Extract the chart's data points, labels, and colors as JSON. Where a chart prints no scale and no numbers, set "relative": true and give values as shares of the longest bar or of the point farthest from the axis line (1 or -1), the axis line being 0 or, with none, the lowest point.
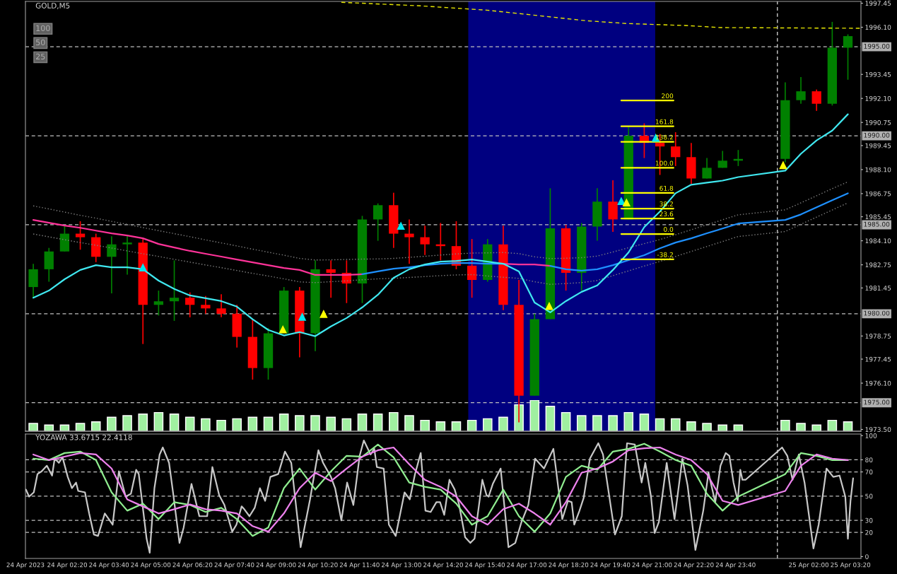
{
  "chart_data": [
    {
      "type": "candlestick",
      "title": "GOLD,M5",
      "annotations": [
        "100",
        "50",
        "25"
      ],
      "x": [
        "2023-04-24T01:15",
        "2023-04-24T01:45",
        "2023-04-24T02:15",
        "2023-04-24T02:45",
        "2023-04-24T03:15",
        "2023-04-24T03:45",
        "2023-04-24T04:15",
        "2023-04-24T04:45",
        "2023-04-24T05:15",
        "2023-04-24T05:45",
        "2023-04-24T06:15",
        "2023-04-24T06:45",
        "2023-04-24T07:15",
        "2023-04-24T07:45",
        "2023-04-24T08:15",
        "2023-04-24T08:45",
        "2023-04-24T09:15",
        "2023-04-24T09:45",
        "2023-04-24T10:15",
        "2023-04-24T10:45",
        "2023-04-24T11:15",
        "2023-04-24T11:45",
        "2023-04-24T12:15",
        "2023-04-24T12:45",
        "2023-04-24T13:15",
        "2023-04-24T13:45",
        "2023-04-24T14:15",
        "2023-04-24T14:45",
        "2023-04-24T15:15",
        "2023-04-24T15:45",
        "2023-04-24T16:15",
        "2023-04-24T16:45",
        "2023-04-24T17:15",
        "2023-04-24T17:45",
        "2023-04-24T18:15",
        "2023-04-24T18:45",
        "2023-04-24T19:15",
        "2023-04-24T19:45",
        "2023-04-24T20:15",
        "2023-04-24T20:45",
        "2023-04-24T21:15",
        "2023-04-24T21:45",
        "2023-04-24T22:15",
        "2023-04-24T22:45",
        "2023-04-24T23:15",
        "2023-04-24T23:45",
        "2023-04-25T01:15",
        "2023-04-25T01:45",
        "2023-04-25T02:15",
        "2023-04-25T02:45",
        "2023-04-25T03:15"
      ],
      "ohlc": [
        [
          1981.5,
          1982.8,
          1980.9,
          1982.5
        ],
        [
          1982.5,
          1983.7,
          1981.8,
          1983.5
        ],
        [
          1983.5,
          1984.95,
          1983.5,
          1984.5
        ],
        [
          1984.5,
          1985.2,
          1983.6,
          1984.3
        ],
        [
          1984.3,
          1984.5,
          1982.9,
          1983.2
        ],
        [
          1983.2,
          1984.35,
          1981.15,
          1983.9
        ],
        [
          1983.9,
          1984.4,
          1982.2,
          1984.0
        ],
        [
          1984.0,
          1984.2,
          1978.3,
          1980.5
        ],
        [
          1980.5,
          1981.3,
          1979.9,
          1980.7
        ],
        [
          1980.7,
          1983.0,
          1979.6,
          1980.9
        ],
        [
          1980.9,
          1981.2,
          1979.8,
          1980.5
        ],
        [
          1980.5,
          1981.0,
          1980.0,
          1980.3
        ],
        [
          1980.3,
          1981.1,
          1979.8,
          1980.0
        ],
        [
          1980.0,
          1980.5,
          1978.1,
          1978.7
        ],
        [
          1978.7,
          1979.7,
          1976.3,
          1976.95
        ],
        [
          1976.95,
          1979.2,
          1976.3,
          1978.9
        ],
        [
          1978.9,
          1981.5,
          1978.9,
          1981.3
        ],
        [
          1981.3,
          1981.5,
          1977.55,
          1978.9
        ],
        [
          1978.9,
          1983.0,
          1977.9,
          1982.5
        ],
        [
          1982.5,
          1983.0,
          1980.9,
          1982.3
        ],
        [
          1982.3,
          1983.0,
          1980.6,
          1981.7
        ],
        [
          1981.7,
          1985.5,
          1980.6,
          1985.3
        ],
        [
          1985.3,
          1986.2,
          1984.1,
          1986.1
        ],
        [
          1986.1,
          1986.8,
          1983.7,
          1984.5
        ],
        [
          1984.5,
          1985.3,
          1982.8,
          1984.3
        ],
        [
          1984.3,
          1984.95,
          1983.3,
          1983.9
        ],
        [
          1983.9,
          1985.1,
          1983.0,
          1983.8
        ],
        [
          1983.8,
          1985.2,
          1982.5,
          1982.7
        ],
        [
          1982.7,
          1984.2,
          1980.9,
          1981.9
        ],
        [
          1981.9,
          1984.2,
          1981.8,
          1983.9
        ],
        [
          1983.9,
          1984.95,
          1980.2,
          1980.5
        ],
        [
          1980.5,
          1981.9,
          1973.9,
          1975.4
        ],
        [
          1975.4,
          1980.0,
          1975.4,
          1979.7
        ],
        [
          1979.7,
          1987.05,
          1979.7,
          1984.8
        ],
        [
          1984.8,
          1985.0,
          1981.3,
          1982.3
        ],
        [
          1982.3,
          1985.1,
          1981.3,
          1984.9
        ],
        [
          1984.9,
          1987.05,
          1984.1,
          1986.3
        ],
        [
          1986.3,
          1987.5,
          1984.6,
          1985.3
        ],
        [
          1985.3,
          1990.5,
          1985.3,
          1990.0
        ],
        [
          1990.0,
          1990.7,
          1988.75,
          1989.6
        ],
        [
          1989.6,
          1990.1,
          1987.8,
          1989.4
        ],
        [
          1989.4,
          1990.2,
          1988.3,
          1988.8
        ],
        [
          1988.8,
          1989.6,
          1987.3,
          1987.6
        ],
        [
          1987.6,
          1988.75,
          1987.6,
          1988.2
        ],
        [
          1988.2,
          1989.15,
          1988.2,
          1988.6
        ],
        [
          1988.6,
          1989.2,
          1988.3,
          1988.7
        ],
        [
          1988.7,
          1993.0,
          1988.5,
          1992.0
        ],
        [
          1992.0,
          1993.3,
          1991.8,
          1992.5
        ],
        [
          1992.5,
          1992.6,
          1991.4,
          1991.8
        ],
        [
          1991.8,
          1996.4,
          1991.7,
          1994.95
        ],
        [
          1994.95,
          1995.7,
          1993.15,
          1995.6
        ]
      ],
      "colors": [
        "#008000",
        "#008000",
        "#008000",
        "#ff0000",
        "#ff0000",
        "#008000",
        "#008000",
        "#ff0000",
        "#008000",
        "#008000",
        "#ff0000",
        "#ff0000",
        "#ff0000",
        "#ff0000",
        "#ff0000",
        "#008000",
        "#008000",
        "#ff0000",
        "#008000",
        "#ff0000",
        "#ff0000",
        "#008000",
        "#008000",
        "#ff0000",
        "#ff0000",
        "#ff0000",
        "#ff0000",
        "#ff0000",
        "#ff0000",
        "#008000",
        "#ff0000",
        "#ff0000",
        "#008000",
        "#008000",
        "#ff0000",
        "#008000",
        "#008000",
        "#ff0000",
        "#008000",
        "#ff0000",
        "#ff0000",
        "#ff0000",
        "#ff0000",
        "#008000",
        "#008000",
        "#008000",
        "#008000",
        "#008000",
        "#ff0000",
        "#008000",
        "#008000"
      ],
      "series": [
        {
          "type": "line",
          "color": "#808080",
          "line_style": "dotted",
          "values": [
            1986.06,
            1985.89,
            1985.71,
            1985.53,
            1985.37,
            1985.19,
            1985.02,
            1984.84,
            1984.67,
            1984.5,
            1984.33,
            1984.15,
            1983.98,
            1983.81,
            1983.63,
            1983.46,
            1983.29,
            1983.11,
            1983.02,
            1983.03,
            1983.05,
            1983.07,
            1983.08,
            1983.11,
            1983.17,
            1983.23,
            1983.3,
            1983.36,
            1983.41,
            1983.42,
            1983.44,
            1983.38,
            1983.2,
            1983.1,
            1983.12,
            1983.15,
            1983.24,
            1983.47,
            1983.71,
            1983.94,
            1984.17,
            1984.44,
            1984.72,
            1985.0,
            1985.28,
            1985.56,
            1985.84,
            1986.23,
            1986.63,
            1987.03,
            1987.41
          ]
        },
        {
          "type": "line",
          "color": "#808080",
          "line_style": "dotted",
          "values": [
            1984.48,
            1984.32,
            1984.16,
            1984.0,
            1983.85,
            1983.69,
            1983.53,
            1983.37,
            1983.22,
            1983.06,
            1982.9,
            1982.74,
            1982.59,
            1982.43,
            1982.27,
            1982.12,
            1981.96,
            1981.79,
            1981.75,
            1981.8,
            1981.85,
            1981.91,
            1981.96,
            1981.99,
            1982.04,
            1982.09,
            1982.14,
            1982.18,
            1982.2,
            1982.12,
            1982.05,
            1981.99,
            1981.8,
            1981.65,
            1981.7,
            1981.75,
            1981.87,
            1982.14,
            1982.41,
            1982.68,
            1982.94,
            1983.22,
            1983.5,
            1983.78,
            1984.06,
            1984.34,
            1984.62,
            1985.03,
            1985.43,
            1985.83,
            1986.23
          ]
        },
        {
          "type": "line",
          "color": "#ff3399",
          "values": [
            1985.27,
            1985.11,
            1984.95,
            1984.83,
            1984.67,
            1984.52,
            1984.4,
            1984.24,
            1983.92,
            1983.72,
            1983.53,
            1983.37,
            1983.21,
            1983.05,
            1982.89,
            1982.73,
            1982.57,
            1982.46,
            1982.18,
            1982.18,
            1982.18,
            1982.22,
            null,
            null,
            null,
            null,
            null,
            null,
            null,
            null,
            1982.81,
            1982.77,
            1982.77,
            1982.69,
            null,
            null,
            null,
            null,
            null,
            null,
            null,
            null,
            null,
            null,
            null,
            null,
            null,
            null,
            null,
            null,
            null
          ]
        },
        {
          "type": "line",
          "color": "#1e90ff",
          "values": [
            null,
            null,
            null,
            null,
            null,
            null,
            null,
            null,
            null,
            null,
            null,
            null,
            null,
            null,
            null,
            null,
            null,
            null,
            null,
            null,
            null,
            1982.22,
            1982.38,
            1982.53,
            1982.61,
            1982.73,
            1982.81,
            1982.85,
            1982.85,
            1982.81,
            1982.81,
            null,
            null,
            1982.69,
            1982.5,
            1982.42,
            1982.5,
            1982.73,
            1983.01,
            1983.29,
            1983.68,
            1984.0,
            1984.24,
            1984.52,
            1984.79,
            1985.07,
            1985.27,
            1985.58,
            1985.98,
            1986.38,
            1986.77
          ]
        },
        {
          "type": "line",
          "color": "#40e8f0",
          "values": [
            1980.9,
            1981.3,
            1981.94,
            1982.46,
            1982.73,
            1982.61,
            1982.61,
            1982.5,
            1981.86,
            1981.39,
            1981.03,
            1980.87,
            1980.71,
            1980.4,
            1979.69,
            1979.09,
            1978.78,
            1978.97,
            1978.74,
            1979.29,
            1979.76,
            1980.36,
            1981.07,
            1982.02,
            1982.5,
            1982.77,
            1982.93,
            1982.97,
            1983.05,
            1982.93,
            1982.81,
            1982.38,
            1980.63,
            1980.08,
            1980.71,
            1981.23,
            1981.59,
            1982.46,
            1983.45,
            1984.87,
            1985.74,
            1986.77,
            1987.25,
            1987.37,
            1987.48,
            1987.68,
            1988.04,
            1988.99,
            1989.74,
            1990.29,
            1991.21
          ]
        },
        {
          "type": "line",
          "color": "#e6e600",
          "line_style": "dashed",
          "x": [
            "2023-04-24T11:05",
            "2023-04-24T13:37",
            "2023-04-24T15:43",
            "2023-04-24T17:23",
            "2023-04-24T18:52",
            "2023-04-24T20:10",
            "2023-04-24T22:08",
            "2023-04-24T23:11",
            "2023-04-25T03:40"
          ],
          "values": [
            1997.5,
            1997.3,
            1997.06,
            1996.75,
            1996.47,
            1996.31,
            1996.19,
            1996.08,
            1996.04
          ]
        },
        {
          "type": "scatter",
          "color": "#00e5ee",
          "marker": "triangle",
          "x": [
            "2023-04-24T04:45",
            "2023-04-24T09:50",
            "2023-04-24T12:59",
            "2023-04-24T20:01",
            "2023-04-24T21:07"
          ],
          "values": [
            1982.61,
            1979.84,
            1984.95,
            1986.34,
            1989.9
          ]
        },
        {
          "type": "scatter",
          "color": "#ffff00",
          "marker": "triangle",
          "x": [
            "2023-04-24T09:13",
            "2023-04-24T10:31",
            "2023-04-24T17:43",
            "2023-04-24T20:11",
            "2023-04-25T01:11"
          ],
          "values": [
            1979.13,
            1980.0,
            1980.44,
            1986.26,
            1988.36
          ]
        },
        {
          "type": "line",
          "name": "200",
          "color": "#ffff00",
          "x": [
            "2023-04-24T20:01",
            "2023-04-24T21:41"
          ],
          "values": [
            1991.98,
            1991.98
          ]
        },
        {
          "type": "line",
          "name": "161.8",
          "color": "#ffff00",
          "x": [
            "2023-04-24T20:01",
            "2023-04-24T21:41"
          ],
          "values": [
            1990.53,
            1990.53
          ]
        },
        {
          "type": "line",
          "name": "138.2",
          "color": "#ffff00",
          "x": [
            "2023-04-24T20:01",
            "2023-04-24T21:41"
          ],
          "values": [
            1989.66,
            1989.66
          ]
        },
        {
          "type": "line",
          "name": "100.0",
          "color": "#ffff00",
          "x": [
            "2023-04-24T20:01",
            "2023-04-24T21:41"
          ],
          "values": [
            1988.2,
            1988.2
          ]
        },
        {
          "type": "line",
          "name": "61.8",
          "color": "#ffff00",
          "x": [
            "2023-04-24T20:01",
            "2023-04-24T21:41"
          ],
          "values": [
            1986.79,
            1986.79
          ]
        },
        {
          "type": "line",
          "name": "38.2",
          "color": "#ffff00",
          "x": [
            "2023-04-24T20:01",
            "2023-04-24T21:41"
          ],
          "values": [
            1985.91,
            1985.91
          ]
        },
        {
          "type": "line",
          "name": "23.6",
          "color": "#ffff00",
          "x": [
            "2023-04-24T20:01",
            "2023-04-24T21:41"
          ],
          "values": [
            1985.35,
            1985.35
          ]
        },
        {
          "type": "line",
          "name": "0.0",
          "color": "#ffff00",
          "x": [
            "2023-04-24T20:01",
            "2023-04-24T21:41"
          ],
          "values": [
            1984.48,
            1984.48
          ]
        },
        {
          "type": "line",
          "name": "-38.2",
          "color": "#ffff00",
          "x": [
            "2023-04-24T20:01",
            "2023-04-24T21:41"
          ],
          "values": [
            1983.06,
            1983.06
          ]
        }
      ],
      "xlim": [
        "2023-04-24T01:00",
        "2023-04-25T03:40"
      ],
      "ylim": [
        1973.4,
        1997.55
      ],
      "yticks": [
        {
          "value": 1973.5,
          "label": "1973.50"
        },
        {
          "value": 1976.1,
          "label": "1976.10"
        },
        {
          "value": 1977.45,
          "label": "1977.45"
        },
        {
          "value": 1978.75,
          "label": "1978.75"
        },
        {
          "value": 1981.45,
          "label": "1981.45"
        },
        {
          "value": 1982.75,
          "label": "1982.75"
        },
        {
          "value": 1984.1,
          "label": "1984.10"
        },
        {
          "value": 1985.45,
          "label": "1985.45"
        },
        {
          "value": 1986.75,
          "label": "1986.75"
        },
        {
          "value": 1988.1,
          "label": "1988.10"
        },
        {
          "value": 1989.45,
          "label": "1989.45"
        },
        {
          "value": 1990.75,
          "label": "1990.75"
        },
        {
          "value": 1992.1,
          "label": "1992.10"
        },
        {
          "value": 1993.45,
          "label": "1993.45"
        },
        {
          "value": 1996.1,
          "label": "1996.10"
        },
        {
          "value": 1997.45,
          "label": "1997.45"
        }
      ],
      "tick_labels": "y",
      "ref_lines": [
        {
          "axis": "y",
          "value": 1995,
          "label": "1995.00",
          "color": "#c0c0c0",
          "line_style": "dashed"
        },
        {
          "axis": "y",
          "value": 1990,
          "label": "1990.00",
          "color": "#c0c0c0",
          "line_style": "dashed"
        },
        {
          "axis": "y",
          "value": 1985,
          "label": "1985.00",
          "color": "#c0c0c0",
          "line_style": "dashed"
        },
        {
          "axis": "y",
          "value": 1980,
          "label": "1980.00",
          "color": "#c0c0c0",
          "line_style": "dashed"
        },
        {
          "axis": "y",
          "value": 1975,
          "label": "1975.00",
          "color": "#c0c0c0",
          "line_style": "dashed"
        },
        {
          "axis": "x",
          "value": "2023-04-25T01:00",
          "color": "#e0e0e0",
          "line_style": "dashed"
        }
      ],
      "bands": [
        {
          "axis": "x",
          "from": "2023-04-24T15:08",
          "to": "2023-04-24T21:06",
          "color": "#000080"
        }
      ]
    },
    {
      "type": "bar",
      "relative": true,
      "color": "#a0f0a0",
      "x": [
        "2023-04-24T01:15",
        "2023-04-24T01:45",
        "2023-04-24T02:15",
        "2023-04-24T02:45",
        "2023-04-24T03:15",
        "2023-04-24T03:45",
        "2023-04-24T04:15",
        "2023-04-24T04:45",
        "2023-04-24T05:15",
        "2023-04-24T05:45",
        "2023-04-24T06:15",
        "2023-04-24T06:45",
        "2023-04-24T07:15",
        "2023-04-24T07:45",
        "2023-04-24T08:15",
        "2023-04-24T08:45",
        "2023-04-24T09:15",
        "2023-04-24T09:45",
        "2023-04-24T10:15",
        "2023-04-24T10:45",
        "2023-04-24T11:15",
        "2023-04-24T11:45",
        "2023-04-24T12:15",
        "2023-04-24T12:45",
        "2023-04-24T13:15",
        "2023-04-24T13:45",
        "2023-04-24T14:15",
        "2023-04-24T14:45",
        "2023-04-24T15:15",
        "2023-04-24T15:45",
        "2023-04-24T16:15",
        "2023-04-24T16:45",
        "2023-04-24T17:15",
        "2023-04-24T17:45",
        "2023-04-24T18:15",
        "2023-04-24T18:45",
        "2023-04-24T19:15",
        "2023-04-24T19:45",
        "2023-04-24T20:15",
        "2023-04-24T20:45",
        "2023-04-24T21:15",
        "2023-04-24T21:45",
        "2023-04-24T22:15",
        "2023-04-24T22:45",
        "2023-04-24T23:15",
        "2023-04-24T23:45",
        "2023-04-25T01:15",
        "2023-04-25T01:45",
        "2023-04-25T02:15",
        "2023-04-25T02:45",
        "2023-04-25T03:15"
      ],
      "values": [
        0.25,
        0.2,
        0.2,
        0.25,
        0.3,
        0.45,
        0.5,
        0.55,
        0.6,
        0.55,
        0.45,
        0.4,
        0.35,
        0.4,
        0.45,
        0.45,
        0.55,
        0.5,
        0.5,
        0.45,
        0.4,
        0.55,
        0.55,
        0.6,
        0.5,
        0.35,
        0.3,
        0.3,
        0.35,
        0.4,
        0.45,
        0.85,
        1,
        0.8,
        0.6,
        0.5,
        0.5,
        0.5,
        0.6,
        0.55,
        0.4,
        0.4,
        0.3,
        0.25,
        0.2,
        0.2,
        0.35,
        0.25,
        0.2,
        0.35,
        0.3
      ],
      "xlim": [
        "2023-04-24T01:00",
        "2023-04-25T03:40"
      ],
      "tick_labels": false
    },
    {
      "type": "line",
      "title": "YOZAWA 33.6715 22.4118",
      "x": [
        "2023-04-24T01:15",
        "2023-04-24T01:45",
        "2023-04-24T02:15",
        "2023-04-24T02:45",
        "2023-04-24T03:15",
        "2023-04-24T03:45",
        "2023-04-24T04:15",
        "2023-04-24T04:45",
        "2023-04-24T05:15",
        "2023-04-24T05:45",
        "2023-04-24T06:15",
        "2023-04-24T06:45",
        "2023-04-24T07:15",
        "2023-04-24T07:45",
        "2023-04-24T08:15",
        "2023-04-24T08:45",
        "2023-04-24T09:15",
        "2023-04-24T09:45",
        "2023-04-24T10:15",
        "2023-04-24T10:45",
        "2023-04-24T11:15",
        "2023-04-24T11:45",
        "2023-04-24T12:15",
        "2023-04-24T12:45",
        "2023-04-24T13:15",
        "2023-04-24T13:45",
        "2023-04-24T14:15",
        "2023-04-24T14:45",
        "2023-04-24T15:15",
        "2023-04-24T15:45",
        "2023-04-24T16:15",
        "2023-04-24T16:45",
        "2023-04-24T17:15",
        "2023-04-24T17:45",
        "2023-04-24T18:15",
        "2023-04-24T18:45",
        "2023-04-24T19:15",
        "2023-04-24T19:45",
        "2023-04-24T20:15",
        "2023-04-24T20:45",
        "2023-04-24T21:15",
        "2023-04-24T21:45",
        "2023-04-24T22:15",
        "2023-04-24T22:45",
        "2023-04-24T23:15",
        "2023-04-24T23:45",
        "2023-04-25T01:15",
        "2023-04-25T01:45",
        "2023-04-25T02:15",
        "2023-04-25T02:45",
        "2023-04-25T03:15"
      ],
      "series": [
        {
          "type": "line",
          "color": "#c8c8c8",
          "x": [
            "2023-04-24T01:01",
            "2023-04-24T01:07",
            "2023-04-24T01:16",
            "2023-04-24T01:23",
            "2023-04-24T01:31",
            "2023-04-24T01:41",
            "2023-04-24T01:51",
            "2023-04-24T01:56",
            "2023-04-24T02:04",
            "2023-04-24T02:11",
            "2023-04-24T02:21",
            "2023-04-24T02:29",
            "2023-04-24T02:37",
            "2023-04-24T02:41",
            "2023-04-24T02:54",
            "2023-04-24T03:02",
            "2023-04-24T03:11",
            "2023-04-24T03:19",
            "2023-04-24T03:32",
            "2023-04-24T03:47",
            "2023-04-24T03:59",
            "2023-04-24T04:12",
            "2023-04-24T04:22",
            "2023-04-24T04:32",
            "2023-04-24T04:37",
            "2023-04-24T04:52",
            "2023-04-24T04:58",
            "2023-04-24T05:07",
            "2023-04-24T05:17",
            "2023-04-24T05:23",
            "2023-04-24T05:35",
            "2023-04-24T05:43",
            "2023-04-24T05:55",
            "2023-04-24T06:03",
            "2023-04-24T06:18",
            "2023-04-24T06:33",
            "2023-04-24T06:48",
            "2023-04-24T06:58",
            "2023-04-24T07:11",
            "2023-04-24T07:21",
            "2023-04-24T07:36",
            "2023-04-24T07:44",
            "2023-04-24T07:54",
            "2023-04-24T07:59",
            "2023-04-24T08:09",
            "2023-04-24T08:19",
            "2023-04-24T08:29",
            "2023-04-24T08:39",
            "2023-04-24T08:49",
            "2023-04-24T09:04",
            "2023-04-24T09:17",
            "2023-04-24T09:29",
            "2023-04-24T09:47",
            "2023-04-24T10:05",
            "2023-04-24T10:21",
            "2023-04-24T10:30",
            "2023-04-24T10:45",
            "2023-04-24T10:53",
            "2023-04-24T11:05",
            "2023-04-24T11:16",
            "2023-04-24T11:28",
            "2023-04-24T11:40",
            "2023-04-24T11:48",
            "2023-04-24T12:01",
            "2023-04-24T12:08",
            "2023-04-24T12:13",
            "2023-04-24T12:26",
            "2023-04-24T12:36",
            "2023-04-24T12:49",
            "2023-04-24T13:06",
            "2023-04-24T13:16",
            "2023-04-24T13:26",
            "2023-04-24T13:37",
            "2023-04-24T13:46",
            "2023-04-24T13:56",
            "2023-04-24T14:07",
            "2023-04-24T14:14",
            "2023-04-24T14:22",
            "2023-04-24T14:32",
            "2023-04-24T14:42",
            "2023-04-24T14:50",
            "2023-04-24T15:02",
            "2023-04-24T15:12",
            "2023-04-24T15:20",
            "2023-04-24T15:35",
            "2023-04-24T15:43",
            "2023-04-24T15:47",
            "2023-04-24T15:55",
            "2023-04-24T16:10",
            "2023-04-24T16:25",
            "2023-04-24T16:38",
            "2023-04-24T16:50",
            "2023-04-24T17:03",
            "2023-04-24T17:16",
            "2023-04-24T17:33",
            "2023-04-24T17:51",
            "2023-04-24T18:08",
            "2023-04-24T18:19",
            "2023-04-24T18:26",
            "2023-04-24T18:31",
            "2023-04-24T18:41",
            "2023-04-24T18:49",
            "2023-04-24T19:01",
            "2023-04-24T19:17",
            "2023-04-24T19:26",
            "2023-04-24T19:49",
            "2023-04-24T20:02",
            "2023-04-24T20:12",
            "2023-04-24T20:27",
            "2023-04-24T20:40",
            "2023-04-24T20:47",
            "2023-04-24T20:58",
            "2023-04-24T21:05",
            "2023-04-24T21:13",
            "2023-04-24T21:28",
            "2023-04-24T21:43",
            "2023-04-24T21:58",
            "2023-04-24T22:08",
            "2023-04-24T22:23",
            "2023-04-24T22:38",
            "2023-04-24T22:48",
            "2023-04-24T23:01",
            "2023-04-24T23:11",
            "2023-04-24T23:21",
            "2023-04-24T23:28",
            "2023-04-24T23:36",
            "2023-04-24T23:44",
            "2023-04-24T23:49",
            "2023-04-24T23:53",
            "2023-04-24T23:59",
            "2023-04-25T01:09",
            "2023-04-25T01:19",
            "2023-04-25T01:29",
            "2023-04-25T01:41",
            "2023-04-25T01:52",
            "2023-04-25T02:09",
            "2023-04-25T02:19",
            "2023-04-25T02:34",
            "2023-04-25T02:47",
            "2023-04-25T02:59",
            "2023-04-25T03:10",
            "2023-04-25T03:15",
            "2023-04-25T03:20",
            "2023-04-25T03:25"
          ],
          "values": [
            55.4,
            49.6,
            53.1,
            68.2,
            70.5,
            75.1,
            67.0,
            81.0,
            77.5,
            82.1,
            65.9,
            56.6,
            61.2,
            54.3,
            53.1,
            35.7,
            18.3,
            17.1,
            35.7,
            26.4,
            70.5,
            49.6,
            51.9,
            71.7,
            68.2,
            14.8,
            3.2,
            56.6,
            84.4,
            90.2,
            77.5,
            51.9,
            11.3,
            24.1,
            60.1,
            33.4,
            33.4,
            74.0,
            50.8,
            42.7,
            20.6,
            26.4,
            41.5,
            39.2,
            33.4,
            40.3,
            56.6,
            46.1,
            65.9,
            68.2,
            86.8,
            77.5,
            7.8,
            47.3,
            87.9,
            77.5,
            65.9,
            56.6,
            29.9,
            61.2,
            42.7,
            83.3,
            96.0,
            84.4,
            89.1,
            74.0,
            72.8,
            26.4,
            17.1,
            53.1,
            47.3,
            68.2,
            85.6,
            38.0,
            36.9,
            45.0,
            45.0,
            34.5,
            63.5,
            55.4,
            43.8,
            16.0,
            11.3,
            14.8,
            63.5,
            50.8,
            49.6,
            60.1,
            72.8,
            7.8,
            11.3,
            28.7,
            42.7,
            81.0,
            72.8,
            89.1,
            31.0,
            46.1,
            45.0,
            26.4,
            38.0,
            48.5,
            81.0,
            93.7,
            84.4,
            18.3,
            33.4,
            93.7,
            92.6,
            61.2,
            77.5,
            49.6,
            19.4,
            28.7,
            77.5,
            31.0,
            81.0,
            58.9,
            5.5,
            38.0,
            69.3,
            45.0,
            75.1,
            85.6,
            83.3,
            61.2,
            46.1,
            71.7,
            63.5,
            63.5,
            90.2,
            83.3,
            63.5,
            84.4,
            61.2,
            6.7,
            26.4,
            72.8,
            65.9,
            67.0,
            49.6,
            14.8,
            46.1,
            64.7
          ]
        },
        {
          "type": "line",
          "color": "#90ee90",
          "values": [
            81.0,
            79.8,
            85.6,
            86.8,
            79.8,
            53.1,
            38.0,
            43.8,
            31.0,
            45.0,
            42.7,
            36.9,
            40.3,
            31.0,
            17.1,
            24.1,
            56.6,
            72.8,
            55.4,
            70.5,
            83.3,
            82.6,
            92.6,
            82.1,
            61.2,
            57.7,
            55.4,
            43.8,
            26.4,
            33.4,
            55.4,
            33.4,
            20.6,
            35.7,
            65.9,
            75.1,
            71.7,
            86.8,
            89.1,
            93.3,
            86.8,
            79.8,
            75.1,
            51.9,
            38.0,
            49.6,
            68.2,
            85.6,
            83.3,
            79.8,
            79.8
          ]
        },
        {
          "type": "line",
          "color": "#ee82ee",
          "values": [
            84.4,
            79.8,
            82.6,
            85.6,
            84.4,
            72.8,
            47.3,
            41.5,
            35.7,
            39.2,
            43.1,
            39.2,
            38.0,
            35.7,
            25.2,
            20.6,
            35.7,
            56.6,
            69.3,
            62.4,
            72.8,
            82.6,
            87.9,
            90.2,
            76.3,
            63.5,
            57.7,
            49.6,
            33.4,
            26.4,
            39.2,
            43.8,
            35.7,
            26.4,
            45.0,
            69.3,
            72.8,
            78.6,
            87.9,
            89.5,
            90.2,
            84.4,
            79.8,
            68.2,
            46.1,
            42.7,
            54.3,
            75.1,
            84.4,
            81.0,
            79.8
          ]
        }
      ],
      "xlim": [
        "2023-04-24T01:00",
        "2023-04-25T03:40"
      ],
      "ylim": [
        -1.5,
        101.3
      ],
      "xticks": [
        {
          "value": "2023-04-24T01:00",
          "label": "24 Apr 2023"
        },
        {
          "value": "2023-04-24T02:20",
          "label": "24 Apr 02:20"
        },
        {
          "value": "2023-04-24T03:40",
          "label": "24 Apr 03:40"
        },
        {
          "value": "2023-04-24T05:00",
          "label": "24 Apr 05:00"
        },
        {
          "value": "2023-04-24T06:20",
          "label": "24 Apr 06:20"
        },
        {
          "value": "2023-04-24T07:40",
          "label": "24 Apr 07:40"
        },
        {
          "value": "2023-04-24T09:00",
          "label": "24 Apr 09:00"
        },
        {
          "value": "2023-04-24T10:20",
          "label": "24 Apr 10:20"
        },
        {
          "value": "2023-04-24T11:40",
          "label": "24 Apr 11:40"
        },
        {
          "value": "2023-04-24T13:00",
          "label": "24 Apr 13:00"
        },
        {
          "value": "2023-04-24T14:20",
          "label": "24 Apr 14:20"
        },
        {
          "value": "2023-04-24T15:40",
          "label": "24 Apr 15:40"
        },
        {
          "value": "2023-04-24T17:00",
          "label": "24 Apr 17:00"
        },
        {
          "value": "2023-04-24T18:20",
          "label": "24 Apr 18:20"
        },
        {
          "value": "2023-04-24T19:40",
          "label": "24 Apr 19:40"
        },
        {
          "value": "2023-04-24T21:00",
          "label": "24 Apr 21:00"
        },
        {
          "value": "2023-04-24T22:20",
          "label": "24 Apr 22:20"
        },
        {
          "value": "2023-04-24T23:40",
          "label": "24 Apr 23:40"
        },
        {
          "value": "2023-04-25T02:00",
          "label": "25 Apr 02:00"
        },
        {
          "value": "2023-04-25T03:20",
          "label": "25 Apr 03:20"
        }
      ],
      "yticks": [
        0,
        20,
        30,
        50,
        70,
        80,
        100
      ],
      "ref_lines": [
        {
          "axis": "y",
          "value": 20,
          "color": "#c0c0c0",
          "line_style": "dashed"
        },
        {
          "axis": "y",
          "value": 30,
          "color": "#c0c0c0",
          "line_style": "dashed"
        },
        {
          "axis": "y",
          "value": 50,
          "color": "#c0c0c0",
          "line_style": "dashed"
        },
        {
          "axis": "y",
          "value": 70,
          "color": "#c0c0c0",
          "line_style": "dashed"
        },
        {
          "axis": "y",
          "value": 80,
          "color": "#c0c0c0",
          "line_style": "dashed"
        },
        {
          "axis": "x",
          "value": "2023-04-25T01:00",
          "color": "#e0e0e0",
          "line_style": "dashed"
        }
      ]
    }
  ]
}
